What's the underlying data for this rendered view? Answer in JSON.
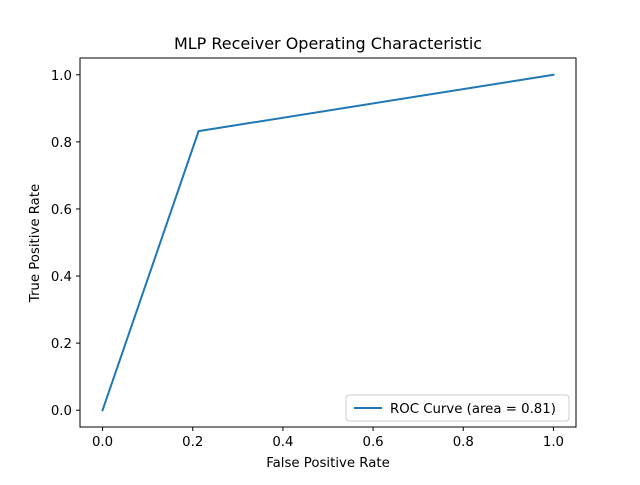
{
  "chart_data": {
    "type": "line",
    "title": "MLP Receiver Operating Characteristic",
    "xlabel": "False Positive Rate",
    "ylabel": "True Positive Rate",
    "xlim": [
      -0.05,
      1.05
    ],
    "ylim": [
      -0.05,
      1.05
    ],
    "xticks": [
      0.0,
      0.2,
      0.4,
      0.6,
      0.8,
      1.0
    ],
    "xtick_labels": [
      "0.0",
      "0.2",
      "0.4",
      "0.6",
      "0.8",
      "1.0"
    ],
    "yticks": [
      0.0,
      0.2,
      0.4,
      0.6,
      0.8,
      1.0
    ],
    "ytick_labels": [
      "0.0",
      "0.2",
      "0.4",
      "0.6",
      "0.8",
      "1.0"
    ],
    "grid": false,
    "legend_position": "lower-right",
    "series": [
      {
        "name": "ROC Curve (area = 0.81)",
        "color": "#1f77b4",
        "x": [
          0.0,
          0.213,
          1.0
        ],
        "y": [
          0.0,
          0.832,
          1.0
        ]
      }
    ]
  }
}
